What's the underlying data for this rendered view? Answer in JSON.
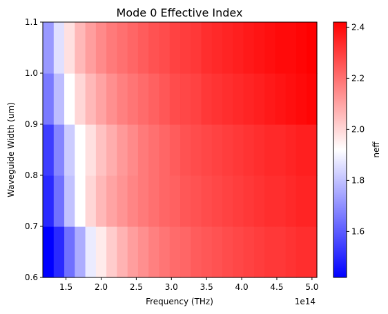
{
  "chart_data": {
    "type": "heatmap",
    "title": "Mode 0 Effective Index",
    "xlabel": "Frequency (THz)",
    "ylabel": "Waveguide Width (um)",
    "x_offset_label": "1e14",
    "colorbar_label": "neff",
    "colormap": [
      "#0000ff",
      "#ffffff",
      "#ff0000"
    ],
    "xlim": [
      1.17,
      5.07
    ],
    "ylim": [
      0.6,
      1.1
    ],
    "clim": [
      1.42,
      2.42
    ],
    "x_ticks": [
      {
        "v": 1.5,
        "label": "1.5"
      },
      {
        "v": 2.0,
        "label": "2.0"
      },
      {
        "v": 2.5,
        "label": "2.5"
      },
      {
        "v": 3.0,
        "label": "3.0"
      },
      {
        "v": 3.5,
        "label": "3.5"
      },
      {
        "v": 4.0,
        "label": "4.0"
      },
      {
        "v": 4.5,
        "label": "4.5"
      },
      {
        "v": 5.0,
        "label": "5.0"
      }
    ],
    "y_ticks": [
      {
        "v": 0.6,
        "label": "0.6"
      },
      {
        "v": 0.7,
        "label": "0.7"
      },
      {
        "v": 0.8,
        "label": "0.8"
      },
      {
        "v": 0.9,
        "label": "0.9"
      },
      {
        "v": 1.0,
        "label": "1.0"
      },
      {
        "v": 1.1,
        "label": "1.1"
      }
    ],
    "colorbar_ticks": [
      {
        "v": 1.6,
        "label": "1.6"
      },
      {
        "v": 1.8,
        "label": "1.8"
      },
      {
        "v": 2.0,
        "label": "2.0"
      },
      {
        "v": 2.2,
        "label": "2.2"
      },
      {
        "v": 2.4,
        "label": "2.4"
      }
    ],
    "y_rows": [
      0.65,
      0.75,
      0.85,
      0.95,
      1.05
    ],
    "x_columns": [
      1.25,
      1.4,
      1.55,
      1.7,
      1.85,
      2.0,
      2.15,
      2.3,
      2.45,
      2.6,
      2.75,
      2.9,
      3.05,
      3.2,
      3.35,
      3.5,
      3.65,
      3.8,
      3.95,
      4.1,
      4.25,
      4.4,
      4.55,
      4.7,
      4.85,
      5.0
    ],
    "values": [
      [
        1.42,
        1.5,
        1.64,
        1.76,
        1.88,
        1.96,
        2.02,
        2.07,
        2.11,
        2.14,
        2.17,
        2.19,
        2.21,
        2.22,
        2.24,
        2.25,
        2.26,
        2.27,
        2.28,
        2.29,
        2.3,
        2.31,
        2.31,
        2.32,
        2.33,
        2.33
      ],
      [
        1.5,
        1.64,
        1.8,
        1.92,
        2.0,
        2.06,
        2.1,
        2.13,
        2.16,
        2.18,
        2.2,
        2.22,
        2.23,
        2.25,
        2.26,
        2.27,
        2.28,
        2.29,
        2.3,
        2.31,
        2.32,
        2.33,
        2.33,
        2.34,
        2.35,
        2.35
      ],
      [
        1.54,
        1.68,
        1.82,
        1.92,
        1.98,
        2.04,
        2.08,
        2.12,
        2.15,
        2.18,
        2.2,
        2.22,
        2.24,
        2.26,
        2.27,
        2.28,
        2.29,
        2.3,
        2.31,
        2.32,
        2.33,
        2.34,
        2.34,
        2.35,
        2.36,
        2.36
      ],
      [
        1.66,
        1.79,
        1.92,
        2.0,
        2.06,
        2.1,
        2.14,
        2.17,
        2.19,
        2.21,
        2.23,
        2.25,
        2.27,
        2.28,
        2.29,
        2.31,
        2.32,
        2.33,
        2.34,
        2.35,
        2.36,
        2.37,
        2.38,
        2.39,
        2.4,
        2.41
      ],
      [
        1.72,
        1.86,
        1.98,
        2.06,
        2.11,
        2.15,
        2.18,
        2.2,
        2.22,
        2.24,
        2.26,
        2.27,
        2.29,
        2.3,
        2.31,
        2.33,
        2.34,
        2.35,
        2.36,
        2.37,
        2.38,
        2.39,
        2.4,
        2.4,
        2.41,
        2.42
      ]
    ]
  }
}
